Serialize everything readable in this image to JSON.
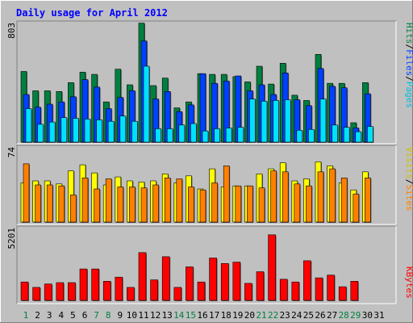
{
  "chart_data": [
    {
      "type": "bar",
      "title": "Daily usage for April 2012",
      "categories": [
        "1",
        "2",
        "3",
        "4",
        "5",
        "6",
        "7",
        "8",
        "9",
        "10",
        "11",
        "12",
        "13",
        "14",
        "15",
        "16",
        "17",
        "18",
        "19",
        "20",
        "21",
        "22",
        "23",
        "24",
        "25",
        "26",
        "27",
        "28",
        "29",
        "30",
        "31"
      ],
      "weekend_days": [
        "1",
        "7",
        "8",
        "14",
        "15",
        "21",
        "22",
        "28",
        "29"
      ],
      "ymax_label": "803",
      "ylim": [
        0,
        803
      ],
      "legend": [
        "Pages",
        "Files",
        "Hits"
      ],
      "series": [
        {
          "name": "Hits",
          "color": "#008040",
          "values": [
            475,
            345,
            345,
            340,
            400,
            470,
            455,
            270,
            490,
            385,
            800,
            380,
            430,
            230,
            270,
            460,
            455,
            455,
            440,
            405,
            510,
            390,
            530,
            315,
            280,
            590,
            395,
            395,
            130,
            400,
            0
          ]
        },
        {
          "name": "Files",
          "color": "#0040ff",
          "values": [
            320,
            235,
            255,
            270,
            305,
            420,
            370,
            225,
            300,
            345,
            680,
            290,
            340,
            205,
            250,
            460,
            395,
            410,
            445,
            345,
            385,
            320,
            465,
            285,
            245,
            495,
            375,
            365,
            95,
            325,
            0
          ]
        },
        {
          "name": "Pages",
          "color": "#00e0ff",
          "values": [
            225,
            120,
            135,
            165,
            160,
            155,
            150,
            140,
            175,
            140,
            510,
            90,
            90,
            115,
            125,
            75,
            90,
            95,
            100,
            290,
            275,
            280,
            285,
            80,
            85,
            290,
            115,
            100,
            70,
            105,
            0
          ]
        }
      ]
    },
    {
      "type": "bar",
      "ymax_label": "74",
      "ylim": [
        0,
        74
      ],
      "legend": [
        "Sites",
        "Visits"
      ],
      "series": [
        {
          "name": "Visits",
          "color": "#ffff00",
          "values": [
            39,
            41,
            41,
            38,
            51,
            57,
            49,
            37,
            45,
            41,
            40,
            41,
            48,
            39,
            46,
            33,
            53,
            35,
            36,
            36,
            48,
            53,
            59,
            41,
            43,
            60,
            56,
            39,
            32,
            50,
            0
          ]
        },
        {
          "name": "Sites",
          "color": "#ff8000",
          "values": [
            58,
            37,
            37,
            36,
            27,
            44,
            33,
            43,
            35,
            35,
            34,
            37,
            44,
            43,
            35,
            32,
            39,
            56,
            36,
            36,
            34,
            51,
            50,
            38,
            36,
            50,
            53,
            44,
            28,
            44,
            0
          ]
        }
      ]
    },
    {
      "type": "bar",
      "ymax_label": "5201",
      "ylim": [
        0,
        5201
      ],
      "legend": [
        "KBytes"
      ],
      "series": [
        {
          "name": "KBytes",
          "color": "#ff0000",
          "values": [
            1350,
            950,
            1200,
            1300,
            1300,
            2300,
            2300,
            1400,
            1700,
            950,
            3500,
            1500,
            3200,
            950,
            2450,
            1350,
            3100,
            2700,
            2800,
            1250,
            2100,
            4800,
            1550,
            1350,
            2900,
            1650,
            1850,
            1000,
            1400,
            0,
            0
          ]
        }
      ]
    }
  ]
}
